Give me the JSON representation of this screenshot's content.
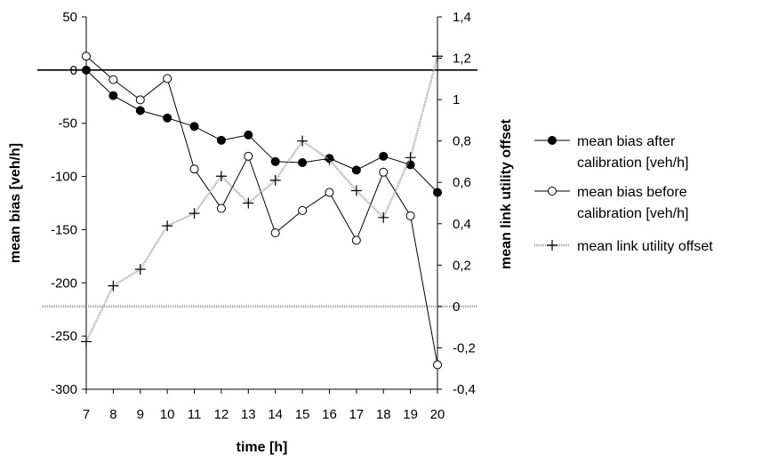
{
  "chart_data": {
    "type": "line",
    "x": [
      7,
      8,
      9,
      10,
      11,
      12,
      13,
      14,
      15,
      16,
      17,
      18,
      19,
      20
    ],
    "xlabel": "time [h]",
    "ylabel": "mean bias [veh/h]",
    "y2label": "mean link utility offset",
    "xlim": [
      7,
      20
    ],
    "ylim": [
      -300,
      50
    ],
    "y2lim": [
      -0.4,
      1.4
    ],
    "x_ticks": [
      "7",
      "8",
      "9",
      "10",
      "11",
      "12",
      "13",
      "14",
      "15",
      "16",
      "17",
      "18",
      "19",
      "20"
    ],
    "y_ticks": [
      {
        "value": 50,
        "label": "50"
      },
      {
        "value": 0,
        "label": "0"
      },
      {
        "value": -50,
        "label": "-50"
      },
      {
        "value": -100,
        "label": "-100"
      },
      {
        "value": -150,
        "label": "-150"
      },
      {
        "value": -200,
        "label": "-200"
      },
      {
        "value": -250,
        "label": "-250"
      },
      {
        "value": -300,
        "label": "-300"
      }
    ],
    "y2_ticks": [
      {
        "value": 1.4,
        "label": "1,4"
      },
      {
        "value": 1.2,
        "label": "1,2"
      },
      {
        "value": 1.0,
        "label": "1"
      },
      {
        "value": 0.8,
        "label": "0,8"
      },
      {
        "value": 0.6,
        "label": "0,6"
      },
      {
        "value": 0.4,
        "label": "0,4"
      },
      {
        "value": 0.2,
        "label": "0,2"
      },
      {
        "value": 0.0,
        "label": "0"
      },
      {
        "value": -0.2,
        "label": "-0,2"
      },
      {
        "value": -0.4,
        "label": "-0,4"
      }
    ],
    "series": [
      {
        "name": "mean bias after calibration [veh/h]",
        "legend_lines": [
          "mean bias after",
          "calibration [veh/h]"
        ],
        "axis": "left",
        "marker": "filled-circle",
        "color": "#000000",
        "values": [
          0,
          -24,
          -38,
          -45,
          -53,
          -66,
          -61,
          -86,
          -87,
          -83,
          -94,
          -81,
          -89,
          -115
        ]
      },
      {
        "name": "mean bias before calibration [veh/h]",
        "legend_lines": [
          "mean bias before",
          "calibration [veh/h]"
        ],
        "axis": "left",
        "marker": "open-circle",
        "color": "#000000",
        "values": [
          13,
          -9,
          -28,
          -8,
          -93,
          -130,
          -81,
          -153,
          -132,
          -115,
          -160,
          -96,
          -137,
          -277
        ]
      },
      {
        "name": "mean link utility offset",
        "legend_lines": [
          "mean link utility offset"
        ],
        "axis": "right",
        "marker": "plus",
        "color": "#a0a0a0",
        "values": [
          -0.17,
          0.1,
          0.18,
          0.39,
          0.45,
          0.63,
          0.5,
          0.61,
          0.8,
          0.71,
          0.56,
          0.43,
          0.72,
          1.21
        ]
      }
    ],
    "reference_lines": [
      {
        "axis": "left",
        "value": 0,
        "color": "#000000"
      },
      {
        "axis": "right",
        "value": 0,
        "color": "#a0a0a0"
      }
    ],
    "grid": false,
    "legend_position": "right"
  }
}
